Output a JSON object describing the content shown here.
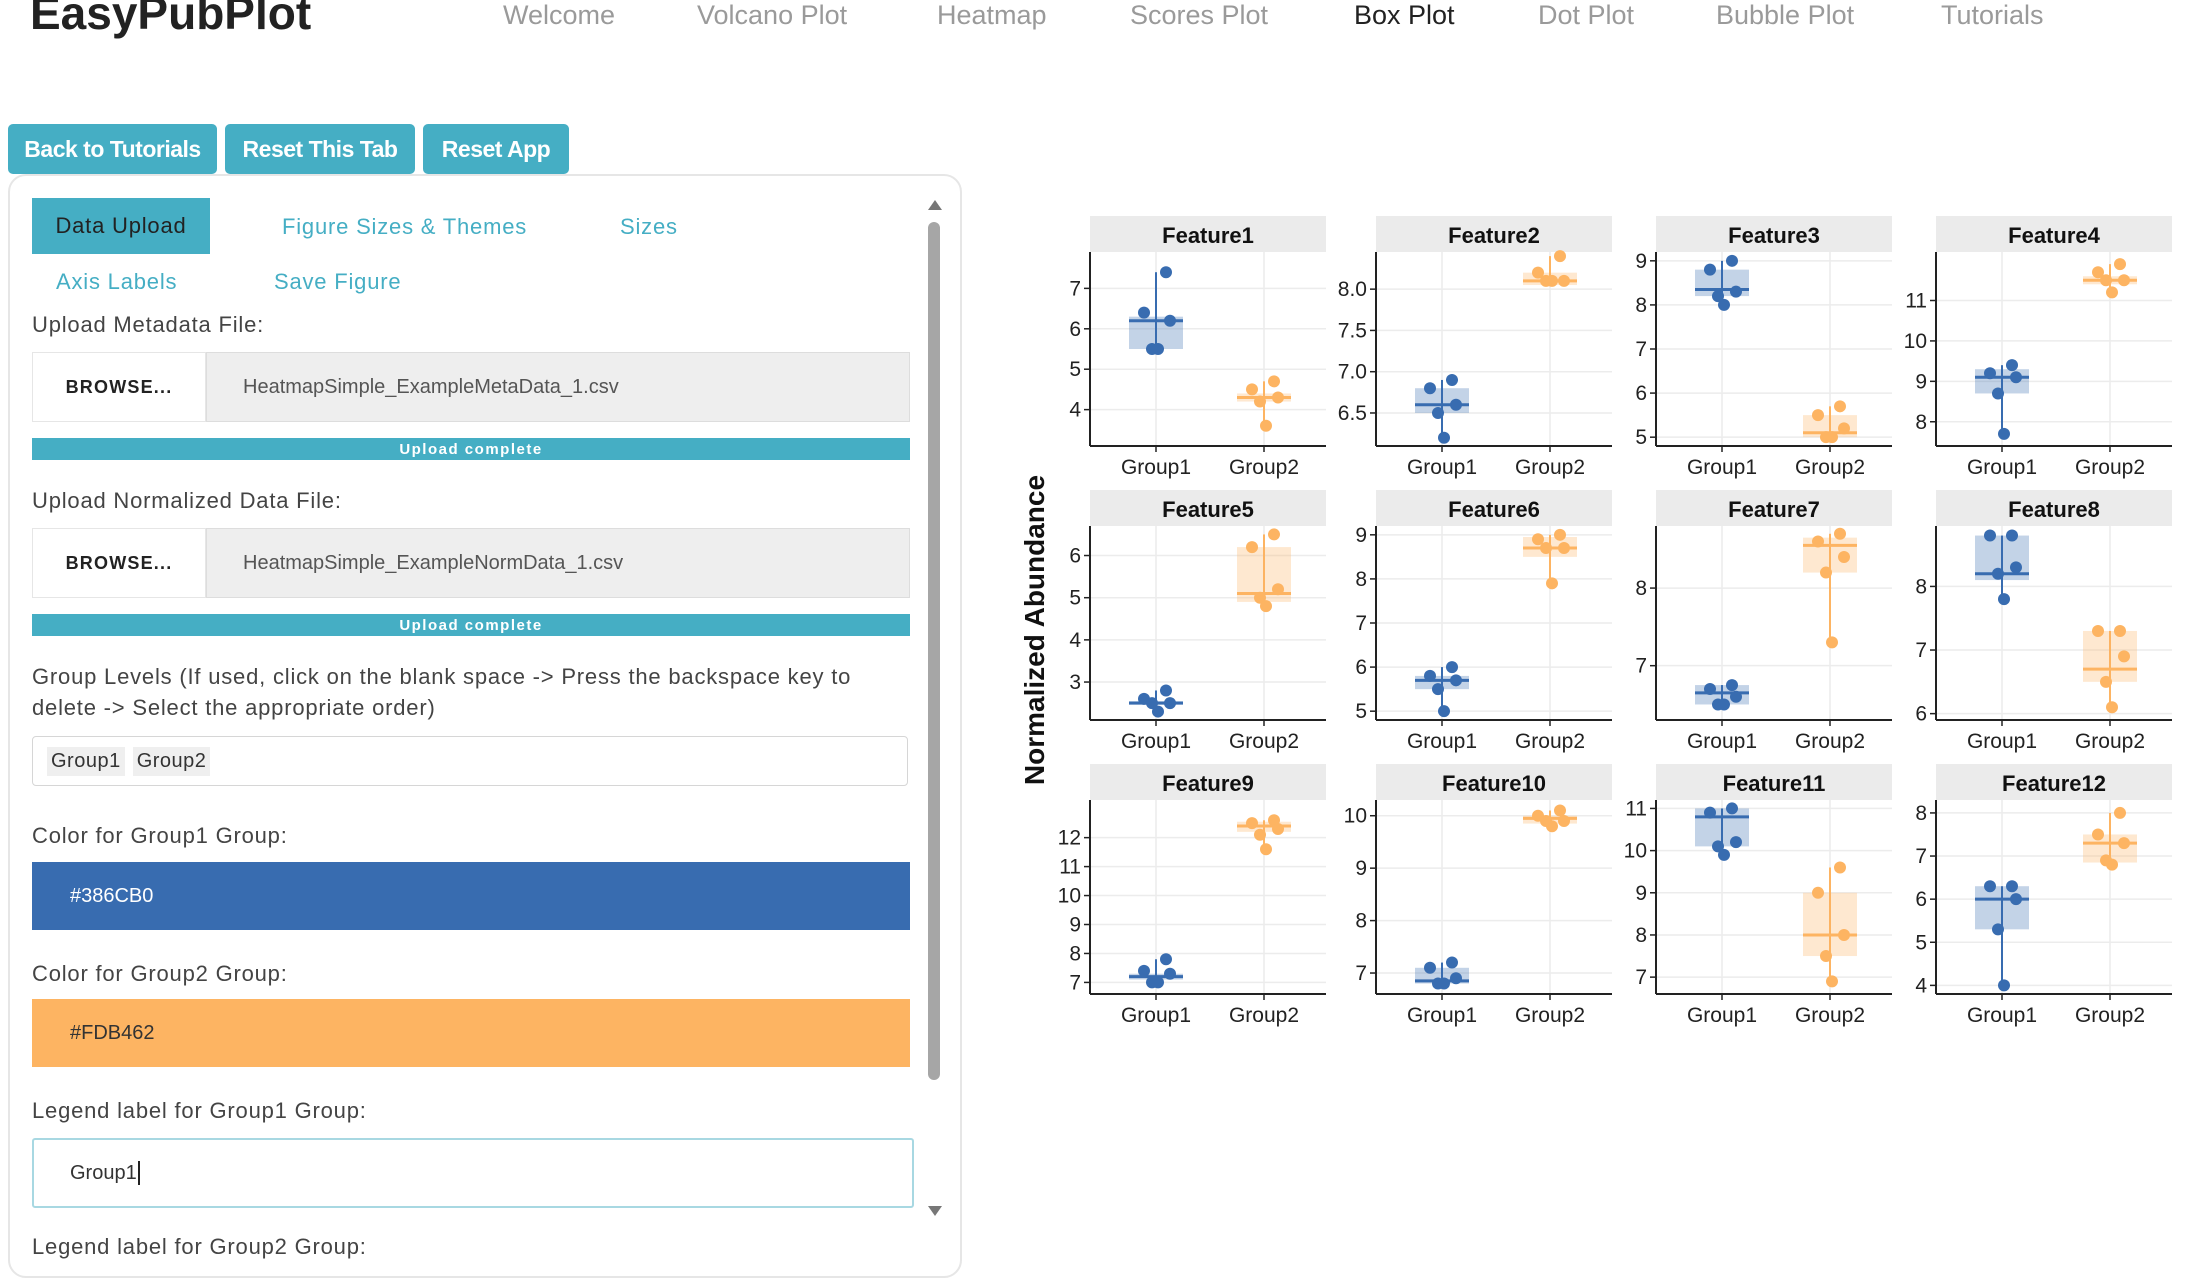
{
  "app": {
    "title": "EasyPubPlot"
  },
  "nav": {
    "items": [
      "Welcome",
      "Volcano Plot",
      "Heatmap",
      "Scores Plot",
      "Box Plot",
      "Dot Plot",
      "Bubble Plot",
      "Tutorials"
    ],
    "active": "Box Plot"
  },
  "buttons": {
    "back": "Back to Tutorials",
    "reset_tab": "Reset This Tab",
    "reset_app": "Reset App"
  },
  "tabs": {
    "data_upload": "Data Upload",
    "figure_sizes": "Figure Sizes & Themes",
    "sizes": "Sizes",
    "axis_labels": "Axis Labels",
    "save_figure": "Save Figure"
  },
  "form": {
    "metadata_label": "Upload Metadata File:",
    "metadata_browse": "BROWSE...",
    "metadata_file": "HeatmapSimple_ExampleMetaData_1.csv",
    "metadata_progress": "Upload complete",
    "norm_label": "Upload Normalized Data File:",
    "norm_browse": "BROWSE...",
    "norm_file": "HeatmapSimple_ExampleNormData_1.csv",
    "norm_progress": "Upload complete",
    "group_levels_label_1": "Group Levels (If used, click on the blank space -> Press the backspace key to",
    "group_levels_label_2": "delete -> Select the appropriate order)",
    "group_levels": [
      "Group1",
      "Group2"
    ],
    "color1_label": "Color for Group1 Group:",
    "color1_value": "#386CB0",
    "color2_label": "Color for Group2 Group:",
    "color2_value": "#FDB462",
    "legend1_label": "Legend label for Group1 Group:",
    "legend1_value": "Group1",
    "legend2_label_partial": "Legend label for Group2 Group:"
  },
  "colors": {
    "accent": "#45aec4",
    "group1": "#386CB0",
    "group2": "#FDB462"
  },
  "chart_data": {
    "type": "box",
    "ylabel": "Normalized Abundance",
    "groups": [
      "Group1",
      "Group2"
    ],
    "facets": [
      {
        "title": "Feature1",
        "yticks": [
          4,
          5,
          6,
          7
        ],
        "ylim": [
          3.1,
          7.9
        ],
        "points": {
          "Group1": [
            7.4,
            6.4,
            6.2,
            5.5,
            5.5
          ],
          "Group2": [
            4.7,
            4.5,
            4.3,
            4.2,
            3.6
          ]
        },
        "box": {
          "Group1": [
            5.5,
            6.2,
            6.3,
            7.4,
            5.5
          ],
          "Group2": [
            4.2,
            4.3,
            4.4,
            4.7,
            3.6
          ]
        }
      },
      {
        "title": "Feature2",
        "yticks": [
          6.5,
          7.0,
          7.5,
          8.0
        ],
        "ylim": [
          6.1,
          8.45
        ],
        "points": {
          "Group1": [
            6.9,
            6.8,
            6.6,
            6.5,
            6.2
          ],
          "Group2": [
            8.4,
            8.2,
            8.1,
            8.1,
            8.1
          ]
        },
        "box": {
          "Group1": [
            6.5,
            6.6,
            6.8,
            6.9,
            6.2
          ],
          "Group2": [
            8.05,
            8.1,
            8.2,
            8.4,
            8.05
          ]
        }
      },
      {
        "title": "Feature3",
        "yticks": [
          5,
          6,
          7,
          8,
          9
        ],
        "ylim": [
          4.8,
          9.2
        ],
        "points": {
          "Group1": [
            9.0,
            8.8,
            8.3,
            8.2,
            8.0
          ],
          "Group2": [
            5.7,
            5.5,
            5.2,
            5.0,
            5.0
          ]
        },
        "box": {
          "Group1": [
            8.2,
            8.35,
            8.8,
            9.0,
            8.0
          ],
          "Group2": [
            5.0,
            5.1,
            5.5,
            5.7,
            5.0
          ]
        }
      },
      {
        "title": "Feature4",
        "yticks": [
          8,
          9,
          10,
          11
        ],
        "ylim": [
          7.4,
          12.2
        ],
        "points": {
          "Group1": [
            9.4,
            9.2,
            9.1,
            8.7,
            7.7
          ],
          "Group2": [
            11.9,
            11.7,
            11.5,
            11.5,
            11.2
          ]
        },
        "box": {
          "Group1": [
            8.7,
            9.1,
            9.3,
            9.4,
            7.7
          ],
          "Group2": [
            11.4,
            11.5,
            11.6,
            11.9,
            11.2
          ]
        }
      },
      {
        "title": "Feature5",
        "yticks": [
          3,
          4,
          5,
          6
        ],
        "ylim": [
          2.1,
          6.7
        ],
        "points": {
          "Group1": [
            2.8,
            2.6,
            2.5,
            2.5,
            2.3
          ],
          "Group2": [
            6.5,
            6.2,
            5.2,
            5.0,
            4.8
          ]
        },
        "box": {
          "Group1": [
            2.5,
            2.5,
            2.55,
            2.8,
            2.3
          ],
          "Group2": [
            4.9,
            5.1,
            6.2,
            6.5,
            4.8
          ]
        }
      },
      {
        "title": "Feature6",
        "yticks": [
          5,
          6,
          7,
          8,
          9
        ],
        "ylim": [
          4.8,
          9.2
        ],
        "points": {
          "Group1": [
            6.0,
            5.8,
            5.7,
            5.5,
            5.0
          ],
          "Group2": [
            9.0,
            8.9,
            8.7,
            8.7,
            7.9
          ]
        },
        "box": {
          "Group1": [
            5.5,
            5.7,
            5.8,
            6.0,
            5.0
          ],
          "Group2": [
            8.5,
            8.7,
            8.95,
            9.0,
            7.9
          ]
        }
      },
      {
        "title": "Feature7",
        "yticks": [
          7,
          8
        ],
        "ylim": [
          6.3,
          8.8
        ],
        "points": {
          "Group1": [
            6.75,
            6.7,
            6.6,
            6.5,
            6.5
          ],
          "Group2": [
            8.7,
            8.6,
            8.4,
            8.2,
            7.3
          ]
        },
        "box": {
          "Group1": [
            6.5,
            6.65,
            6.75,
            6.75,
            6.5
          ],
          "Group2": [
            8.2,
            8.55,
            8.65,
            8.7,
            7.3
          ]
        }
      },
      {
        "title": "Feature8",
        "yticks": [
          6,
          7,
          8
        ],
        "ylim": [
          5.9,
          8.95
        ],
        "points": {
          "Group1": [
            8.8,
            8.8,
            8.3,
            8.2,
            7.8
          ],
          "Group2": [
            7.3,
            7.3,
            6.9,
            6.5,
            6.1
          ]
        },
        "box": {
          "Group1": [
            8.1,
            8.2,
            8.8,
            8.8,
            7.8
          ],
          "Group2": [
            6.5,
            6.7,
            7.3,
            7.3,
            6.1
          ]
        }
      },
      {
        "title": "Feature9",
        "yticks": [
          7,
          8,
          9,
          10,
          11,
          12
        ],
        "ylim": [
          6.6,
          13.3
        ],
        "points": {
          "Group1": [
            7.8,
            7.4,
            7.3,
            7.0,
            7.0
          ],
          "Group2": [
            12.6,
            12.5,
            12.3,
            12.1,
            11.6
          ]
        },
        "box": {
          "Group1": [
            7.1,
            7.2,
            7.3,
            7.8,
            7.0
          ],
          "Group2": [
            12.2,
            12.4,
            12.55,
            12.6,
            11.6
          ]
        }
      },
      {
        "title": "Feature10",
        "yticks": [
          7,
          8,
          9,
          10
        ],
        "ylim": [
          6.6,
          10.3
        ],
        "points": {
          "Group1": [
            7.2,
            7.1,
            6.9,
            6.8,
            6.8
          ],
          "Group2": [
            10.1,
            10.0,
            9.9,
            9.9,
            9.8
          ]
        },
        "box": {
          "Group1": [
            6.8,
            6.85,
            7.1,
            7.2,
            6.8
          ],
          "Group2": [
            9.85,
            9.95,
            10.0,
            10.1,
            9.8
          ]
        }
      },
      {
        "title": "Feature11",
        "yticks": [
          7,
          8,
          9,
          10,
          11
        ],
        "ylim": [
          6.6,
          11.2
        ],
        "points": {
          "Group1": [
            11.0,
            10.9,
            10.2,
            10.1,
            9.9
          ],
          "Group2": [
            9.6,
            9.0,
            8.0,
            7.5,
            6.9
          ]
        },
        "box": {
          "Group1": [
            10.1,
            10.8,
            11.0,
            11.0,
            9.9
          ],
          "Group2": [
            7.5,
            8.0,
            9.0,
            9.6,
            6.9
          ]
        }
      },
      {
        "title": "Feature12",
        "yticks": [
          4,
          5,
          6,
          7,
          8
        ],
        "ylim": [
          3.8,
          8.3
        ],
        "points": {
          "Group1": [
            6.3,
            6.3,
            6.0,
            5.3,
            4.0
          ],
          "Group2": [
            8.0,
            7.5,
            7.3,
            6.9,
            6.8
          ]
        },
        "box": {
          "Group1": [
            5.3,
            6.0,
            6.3,
            6.3,
            4.0
          ],
          "Group2": [
            6.85,
            7.3,
            7.5,
            8.0,
            6.8
          ]
        }
      }
    ]
  }
}
